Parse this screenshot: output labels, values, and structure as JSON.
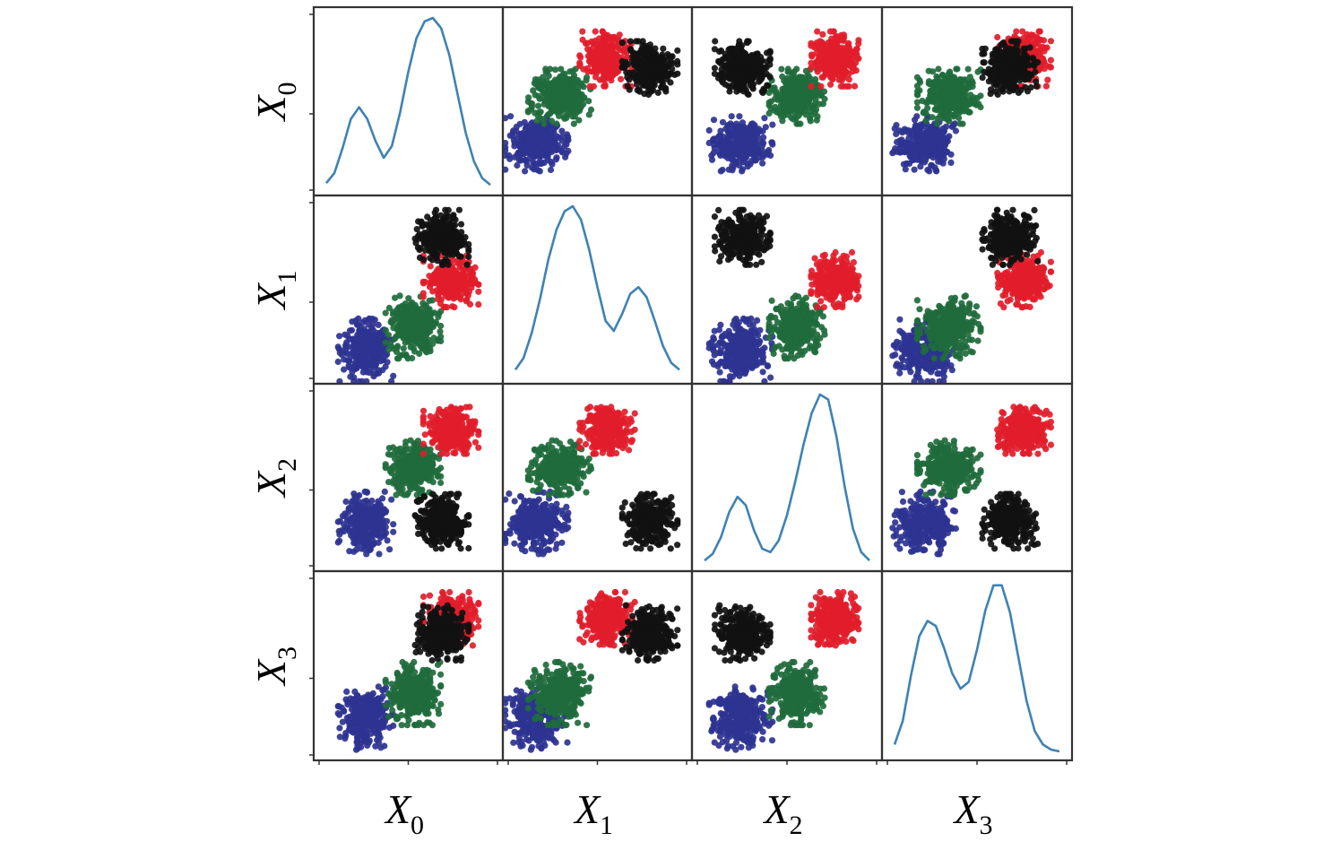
{
  "chart_data": {
    "type": "scatter",
    "subtype": "scatter-matrix",
    "title": "",
    "variables": [
      {
        "base": "X",
        "sub": "0"
      },
      {
        "base": "X",
        "sub": "1"
      },
      {
        "base": "X",
        "sub": "2"
      },
      {
        "base": "X",
        "sub": "3"
      }
    ],
    "diagonal": "kde",
    "kde_color": "#3e82b4",
    "axis_range": [
      0,
      1
    ],
    "grid": false,
    "legend": "none",
    "clusters": [
      {
        "color": "#2e3391",
        "center": [
          0.24,
          0.13,
          0.22,
          0.18
        ],
        "spread": [
          0.07,
          0.08,
          0.08,
          0.08
        ]
      },
      {
        "color": "#1f6b3c",
        "center": [
          0.53,
          0.27,
          0.56,
          0.33
        ],
        "spread": [
          0.07,
          0.08,
          0.07,
          0.08
        ]
      },
      {
        "color": "#e21d2b",
        "center": [
          0.76,
          0.56,
          0.79,
          0.78
        ],
        "spread": [
          0.07,
          0.07,
          0.06,
          0.07
        ]
      },
      {
        "color": "#111111",
        "center": [
          0.7,
          0.82,
          0.23,
          0.7
        ],
        "spread": [
          0.07,
          0.07,
          0.07,
          0.07
        ]
      }
    ],
    "kde_curves": [
      {
        "x": [
          0.0,
          0.05,
          0.1,
          0.15,
          0.2,
          0.25,
          0.3,
          0.35,
          0.4,
          0.45,
          0.5,
          0.55,
          0.6,
          0.65,
          0.7,
          0.75,
          0.8,
          0.85,
          0.9,
          0.95,
          1.0
        ],
        "y": [
          0.02,
          0.08,
          0.23,
          0.4,
          0.47,
          0.4,
          0.27,
          0.17,
          0.24,
          0.44,
          0.68,
          0.88,
          0.98,
          1.0,
          0.94,
          0.78,
          0.55,
          0.32,
          0.15,
          0.05,
          0.01
        ]
      },
      {
        "x": [
          0.0,
          0.05,
          0.1,
          0.15,
          0.2,
          0.25,
          0.3,
          0.35,
          0.4,
          0.45,
          0.5,
          0.55,
          0.6,
          0.65,
          0.7,
          0.75,
          0.8,
          0.85,
          0.9,
          0.95,
          1.0
        ],
        "y": [
          0.03,
          0.1,
          0.25,
          0.45,
          0.68,
          0.86,
          0.97,
          1.0,
          0.92,
          0.74,
          0.52,
          0.32,
          0.26,
          0.36,
          0.48,
          0.52,
          0.46,
          0.32,
          0.17,
          0.07,
          0.03
        ]
      },
      {
        "x": [
          0.0,
          0.05,
          0.1,
          0.15,
          0.2,
          0.25,
          0.3,
          0.35,
          0.4,
          0.45,
          0.5,
          0.55,
          0.6,
          0.65,
          0.7,
          0.75,
          0.8,
          0.85,
          0.9,
          0.95,
          1.0
        ],
        "y": [
          0.01,
          0.05,
          0.15,
          0.3,
          0.39,
          0.34,
          0.19,
          0.08,
          0.06,
          0.13,
          0.28,
          0.48,
          0.7,
          0.89,
          1.0,
          0.97,
          0.75,
          0.45,
          0.2,
          0.06,
          0.01
        ]
      },
      {
        "x": [
          0.0,
          0.05,
          0.1,
          0.15,
          0.2,
          0.25,
          0.3,
          0.35,
          0.4,
          0.45,
          0.5,
          0.55,
          0.6,
          0.65,
          0.7,
          0.75,
          0.8,
          0.85,
          0.9,
          0.95,
          1.0
        ],
        "y": [
          0.04,
          0.18,
          0.45,
          0.68,
          0.77,
          0.74,
          0.61,
          0.46,
          0.37,
          0.41,
          0.6,
          0.83,
          0.98,
          0.98,
          0.82,
          0.56,
          0.3,
          0.12,
          0.04,
          0.01,
          0.0
        ]
      }
    ]
  }
}
